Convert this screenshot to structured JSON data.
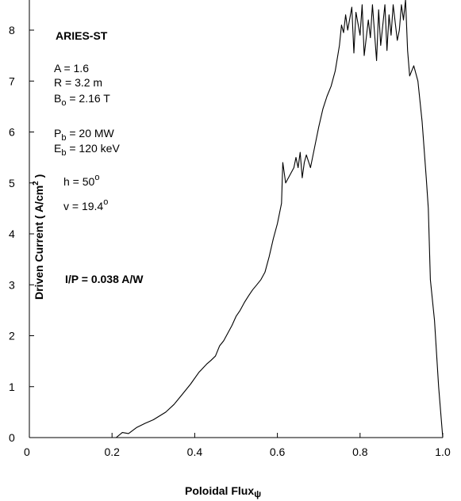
{
  "chart_data": {
    "type": "line",
    "title": "",
    "xlabel": "Poloidal Flux",
    "xlabel_symbol": "ψ",
    "ylabel": "Driven Current  ( A/cm",
    "ylabel_sup": "2",
    "ylabel_close": " )",
    "xlim": [
      0,
      1.0
    ],
    "ylim": [
      0,
      8.5
    ],
    "xticks": [
      0,
      0.2,
      0.4,
      0.6,
      0.8,
      1.0
    ],
    "xtick_labels": [
      "0",
      "0.2",
      "0.4",
      "0.6",
      "0.8",
      "1.0"
    ],
    "yticks": [
      0,
      1,
      2,
      3,
      4,
      5,
      6,
      7,
      8
    ],
    "ytick_labels": [
      "0",
      "1",
      "2",
      "3",
      "4",
      "5",
      "6",
      "7",
      "8"
    ],
    "grid": false,
    "legend": "none",
    "line_color": "#000000",
    "series": [
      {
        "x": [
          0.15,
          0.21,
          0.225,
          0.24,
          0.26,
          0.28,
          0.3,
          0.33,
          0.35,
          0.37,
          0.39,
          0.41,
          0.43,
          0.44,
          0.45,
          0.46,
          0.47,
          0.48,
          0.49,
          0.5,
          0.51,
          0.52,
          0.53,
          0.54,
          0.55,
          0.56,
          0.57,
          0.58,
          0.59,
          0.6,
          0.61,
          0.613,
          0.62,
          0.63,
          0.64,
          0.645,
          0.65,
          0.655,
          0.66,
          0.665,
          0.67,
          0.68,
          0.69,
          0.7,
          0.71,
          0.72,
          0.73,
          0.74,
          0.75,
          0.755,
          0.76,
          0.765,
          0.77,
          0.78,
          0.785,
          0.79,
          0.8,
          0.805,
          0.81,
          0.82,
          0.825,
          0.83,
          0.84,
          0.845,
          0.85,
          0.86,
          0.865,
          0.87,
          0.875,
          0.88,
          0.89,
          0.895,
          0.9,
          0.905,
          0.91,
          0.915,
          0.92,
          0.93,
          0.94,
          0.95,
          0.96,
          0.965,
          0.97,
          0.98,
          0.99,
          1.0
        ],
        "y": [
          0.0,
          0.0,
          0.1,
          0.08,
          0.2,
          0.28,
          0.35,
          0.5,
          0.65,
          0.85,
          1.05,
          1.28,
          1.45,
          1.52,
          1.6,
          1.8,
          1.9,
          2.05,
          2.2,
          2.38,
          2.5,
          2.65,
          2.78,
          2.9,
          3.0,
          3.1,
          3.25,
          3.55,
          3.9,
          4.2,
          4.6,
          5.4,
          5.0,
          5.15,
          5.3,
          5.5,
          5.3,
          5.6,
          5.1,
          5.4,
          5.55,
          5.3,
          5.7,
          6.1,
          6.45,
          6.7,
          6.9,
          7.2,
          7.7,
          8.1,
          7.95,
          8.3,
          8.0,
          8.45,
          7.55,
          8.35,
          7.9,
          8.5,
          7.5,
          8.2,
          7.85,
          8.5,
          7.4,
          8.4,
          7.7,
          8.5,
          7.6,
          8.3,
          7.9,
          8.5,
          7.8,
          8.0,
          8.5,
          8.2,
          8.6,
          7.6,
          7.1,
          7.3,
          7.0,
          6.2,
          5.1,
          4.5,
          3.1,
          2.3,
          1.0,
          0.0
        ]
      }
    ],
    "annotations": {
      "name": "ARIES-ST",
      "a_line": "A = 1.6",
      "r_line": "R = 3.2 m",
      "b_main": "B",
      "b_sub": "o",
      "b_rest": " = 2.16 T",
      "p_main": "P",
      "p_sub": "b",
      "p_rest": " = 20 MW",
      "e_main": "E",
      "e_sub": "b",
      "e_rest": " = 120 keV",
      "h_main": "h = 50",
      "h_sup": "o",
      "v_main": "v = 19.4",
      "v_sup": "o",
      "ip_line": "I/P = 0.038 A/W"
    }
  }
}
